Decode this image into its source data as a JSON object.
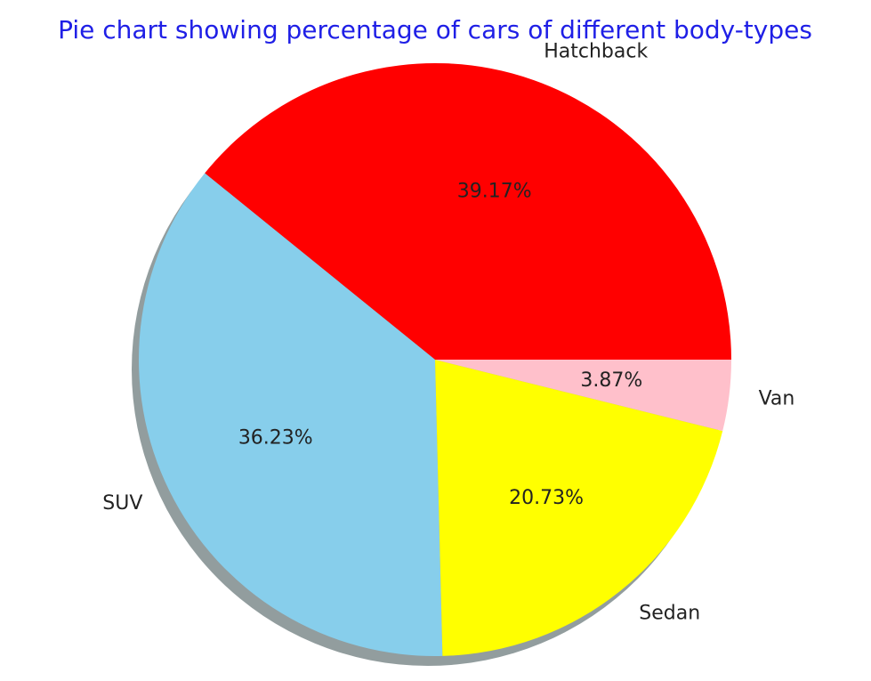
{
  "chart_data": {
    "type": "pie",
    "title": "Pie chart showing percentage of cars of different body-types",
    "title_color": "#1f1fe6",
    "startangle_deg": 0,
    "direction": "counterclockwise",
    "shadow": true,
    "slices": [
      {
        "label": "Hatchback",
        "value": 39.17,
        "pct_label": "39.17%",
        "color": "#ff0000"
      },
      {
        "label": "SUV",
        "value": 36.23,
        "pct_label": "36.23%",
        "color": "#87ceeb"
      },
      {
        "label": "Sedan",
        "value": 20.73,
        "pct_label": "20.73%",
        "color": "#ffff00"
      },
      {
        "label": "Van",
        "value": 3.87,
        "pct_label": "3.87%",
        "color": "#ffc0cb"
      }
    ]
  }
}
